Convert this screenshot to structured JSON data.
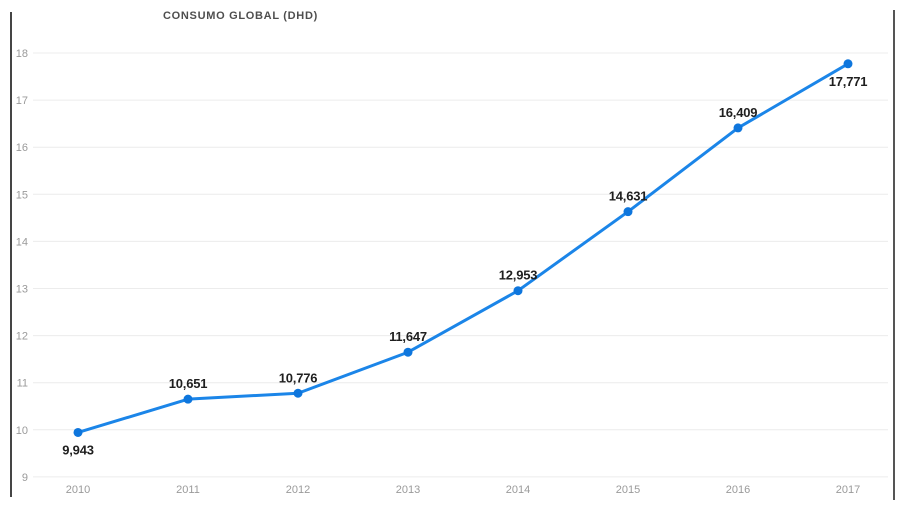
{
  "chart_data": {
    "type": "line",
    "title": "CONSUMO GLOBAL (DHD)",
    "categories": [
      "2010",
      "2011",
      "2012",
      "2013",
      "2014",
      "2015",
      "2016",
      "2017"
    ],
    "series": [
      {
        "name": "Consumo global",
        "values": [
          9943,
          10651,
          10776,
          11647,
          12953,
          14631,
          16409,
          17771
        ],
        "point_labels": [
          "9,943",
          "10,651",
          "10,776",
          "11,647",
          "12,953",
          "14,631",
          "16,409",
          "17,771"
        ],
        "label_placements": [
          "below",
          "above",
          "above",
          "above",
          "above",
          "above",
          "above",
          "below"
        ]
      }
    ],
    "xlabel": "",
    "ylabel": "",
    "y_ticks": [
      9,
      10,
      11,
      12,
      13,
      14,
      15,
      16,
      17,
      18
    ],
    "ylim": [
      9,
      18
    ],
    "y_axis_unit_divisor": 1000,
    "grid": "horizontal",
    "legend": "none",
    "colors": {
      "line": "#1b85e8",
      "marker": "#0e76dd",
      "grid_line": "#ececec",
      "axis_text": "#9a9a9a",
      "point_label_text": "#1f1f1f",
      "title_text": "#4e4e4e",
      "frame_border": "#454545",
      "background": "#ffffff"
    }
  }
}
